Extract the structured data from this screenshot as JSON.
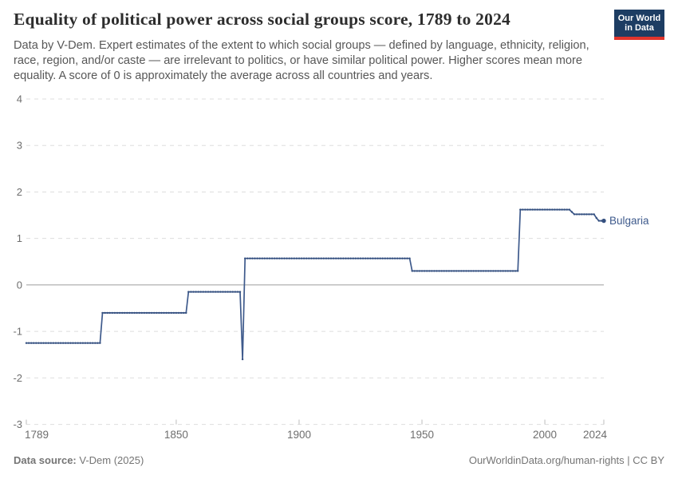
{
  "header": {
    "title": "Equality of political power across social groups score, 1789 to 2024",
    "subtitle": "Data by V-Dem. Expert estimates of the extent to which social groups — defined by language, ethnicity, religion, race, region, and/or caste — are irrelevant to politics, or have similar political power. Higher scores mean more equality. A score of 0 is approximately the average across all countries and years.",
    "logo": {
      "line1": "Our World",
      "line2": "in Data",
      "bg_color": "#1d3d63",
      "bar_color": "#e0342c"
    }
  },
  "chart_data": {
    "type": "line",
    "title": "Equality of political power across social groups score, 1789 to 2024",
    "xlabel": "",
    "ylabel": "",
    "xlim": [
      1789,
      2024
    ],
    "ylim": [
      -3,
      4
    ],
    "x_ticks": [
      1789,
      1850,
      1900,
      1950,
      2000,
      2024
    ],
    "y_ticks": [
      -3,
      -2,
      -1,
      0,
      1,
      2,
      3,
      4
    ],
    "grid": "horizontal-dashed",
    "zero_line": true,
    "legend_position": "end-of-line-label",
    "series": [
      {
        "name": "Bulgaria",
        "color": "#3e5a8c",
        "dot_color": "#35507f",
        "end_year": 2024,
        "steps": [
          [
            1789,
            -1.25
          ],
          [
            1820,
            -0.6
          ],
          [
            1855,
            -0.15
          ],
          [
            1877,
            -1.6
          ],
          [
            1878,
            0.57
          ],
          [
            1946,
            0.3
          ],
          [
            1990,
            1.62
          ],
          [
            2011,
            1.57
          ],
          [
            2012,
            1.52
          ],
          [
            2021,
            1.44
          ],
          [
            2022,
            1.38
          ]
        ]
      }
    ],
    "axis_color": "#6e6e6e",
    "grid_color": "#dedede",
    "zero_line_color": "#9e9e9e"
  },
  "footer": {
    "source_label": "Data source:",
    "source_value": " V-Dem (2025)",
    "credit": "OurWorldinData.org/human-rights | CC BY"
  }
}
